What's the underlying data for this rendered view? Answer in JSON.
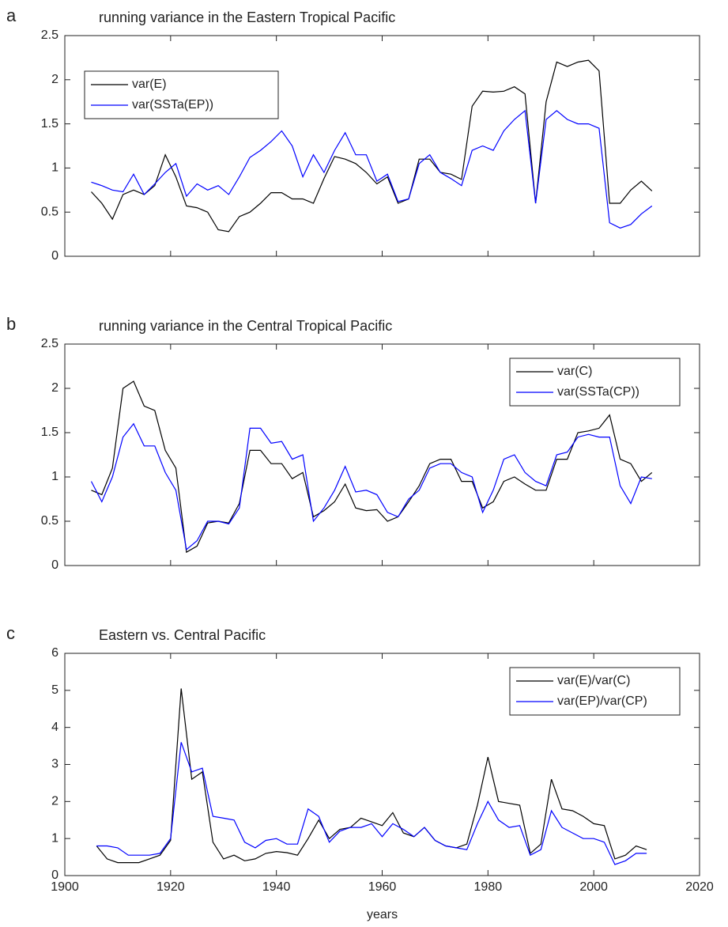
{
  "chart_data": [
    {
      "type": "line",
      "panel_label": "a",
      "title": "running variance in the Eastern Tropical Pacific",
      "x": [
        1905,
        1907,
        1909,
        1911,
        1913,
        1915,
        1917,
        1919,
        1921,
        1923,
        1925,
        1927,
        1929,
        1931,
        1933,
        1935,
        1937,
        1939,
        1941,
        1943,
        1945,
        1947,
        1949,
        1951,
        1953,
        1955,
        1957,
        1959,
        1961,
        1963,
        1965,
        1967,
        1969,
        1971,
        1973,
        1975,
        1977,
        1979,
        1981,
        1983,
        1985,
        1987,
        1989,
        1991,
        1993,
        1995,
        1997,
        1999,
        2001,
        2003,
        2005,
        2007,
        2009,
        2011
      ],
      "series": [
        {
          "name": "var(E)",
          "color": "#000000",
          "values": [
            0.73,
            0.6,
            0.42,
            0.7,
            0.75,
            0.7,
            0.8,
            1.15,
            0.9,
            0.57,
            0.55,
            0.5,
            0.3,
            0.28,
            0.45,
            0.5,
            0.6,
            0.72,
            0.72,
            0.65,
            0.65,
            0.6,
            0.88,
            1.13,
            1.1,
            1.05,
            0.95,
            0.82,
            0.9,
            0.6,
            0.65,
            1.1,
            1.1,
            0.95,
            0.93,
            0.87,
            1.7,
            1.87,
            1.86,
            1.87,
            1.92,
            1.84,
            0.6,
            1.75,
            2.2,
            2.15,
            2.2,
            2.22,
            2.1,
            0.6,
            0.6,
            0.75,
            0.85,
            0.74
          ]
        },
        {
          "name": "var(SSTa(EP))",
          "color": "#0000ff",
          "values": [
            0.84,
            0.8,
            0.75,
            0.73,
            0.93,
            0.7,
            0.82,
            0.95,
            1.05,
            0.68,
            0.82,
            0.75,
            0.8,
            0.7,
            0.9,
            1.12,
            1.2,
            1.3,
            1.42,
            1.25,
            0.9,
            1.15,
            0.95,
            1.2,
            1.4,
            1.15,
            1.15,
            0.85,
            0.93,
            0.62,
            0.65,
            1.05,
            1.15,
            0.95,
            0.88,
            0.8,
            1.2,
            1.25,
            1.2,
            1.42,
            1.55,
            1.65,
            0.6,
            1.55,
            1.65,
            1.55,
            1.5,
            1.5,
            1.45,
            0.38,
            0.32,
            0.36,
            0.48,
            0.57
          ]
        }
      ],
      "xlim": [
        1900,
        2020
      ],
      "xticks": [
        1900,
        1920,
        1940,
        1960,
        1980,
        2000,
        2020
      ],
      "xtick_labels": false,
      "ylim": [
        0,
        2.5
      ],
      "yticks": [
        0,
        0.5,
        1,
        1.5,
        2,
        2.5
      ],
      "legend": "upper left"
    },
    {
      "type": "line",
      "panel_label": "b",
      "title": "running variance in the Central Tropical Pacific",
      "x": [
        1905,
        1907,
        1909,
        1911,
        1913,
        1915,
        1917,
        1919,
        1921,
        1923,
        1925,
        1927,
        1929,
        1931,
        1933,
        1935,
        1937,
        1939,
        1941,
        1943,
        1945,
        1947,
        1949,
        1951,
        1953,
        1955,
        1957,
        1959,
        1961,
        1963,
        1965,
        1967,
        1969,
        1971,
        1973,
        1975,
        1977,
        1979,
        1981,
        1983,
        1985,
        1987,
        1989,
        1991,
        1993,
        1995,
        1997,
        1999,
        2001,
        2003,
        2005,
        2007,
        2009,
        2011
      ],
      "series": [
        {
          "name": "var(C)",
          "color": "#000000",
          "values": [
            0.85,
            0.8,
            1.1,
            2.0,
            2.08,
            1.8,
            1.75,
            1.3,
            1.1,
            0.15,
            0.22,
            0.48,
            0.5,
            0.48,
            0.7,
            1.3,
            1.3,
            1.15,
            1.15,
            0.98,
            1.05,
            0.55,
            0.62,
            0.72,
            0.92,
            0.65,
            0.62,
            0.63,
            0.5,
            0.55,
            0.72,
            0.9,
            1.15,
            1.2,
            1.2,
            0.95,
            0.95,
            0.65,
            0.72,
            0.95,
            1.0,
            0.92,
            0.85,
            0.85,
            1.2,
            1.2,
            1.5,
            1.52,
            1.55,
            1.7,
            1.2,
            1.15,
            0.95,
            1.05
          ]
        },
        {
          "name": "var(SSTa(CP))",
          "color": "#0000ff",
          "values": [
            0.95,
            0.72,
            1.0,
            1.45,
            1.6,
            1.35,
            1.35,
            1.05,
            0.85,
            0.18,
            0.28,
            0.5,
            0.5,
            0.47,
            0.65,
            1.55,
            1.55,
            1.38,
            1.4,
            1.2,
            1.25,
            0.5,
            0.65,
            0.85,
            1.12,
            0.83,
            0.85,
            0.8,
            0.6,
            0.55,
            0.75,
            0.85,
            1.1,
            1.15,
            1.15,
            1.05,
            1.0,
            0.6,
            0.85,
            1.2,
            1.25,
            1.05,
            0.95,
            0.9,
            1.25,
            1.28,
            1.45,
            1.48,
            1.45,
            1.45,
            0.9,
            0.7,
            1.0,
            0.98
          ]
        }
      ],
      "xlim": [
        1900,
        2020
      ],
      "xticks": [
        1900,
        1920,
        1940,
        1960,
        1980,
        2000,
        2020
      ],
      "xtick_labels": false,
      "ylim": [
        0,
        2.5
      ],
      "yticks": [
        0,
        0.5,
        1,
        1.5,
        2,
        2.5
      ],
      "legend": "upper right"
    },
    {
      "type": "line",
      "panel_label": "c",
      "title": "Eastern vs. Central Pacific",
      "xlabel": "years",
      "x": [
        1906,
        1908,
        1910,
        1912,
        1914,
        1916,
        1918,
        1920,
        1922,
        1924,
        1926,
        1928,
        1930,
        1932,
        1934,
        1936,
        1938,
        1940,
        1942,
        1944,
        1946,
        1948,
        1950,
        1952,
        1954,
        1956,
        1958,
        1960,
        1962,
        1964,
        1966,
        1968,
        1970,
        1972,
        1974,
        1976,
        1978,
        1980,
        1982,
        1984,
        1986,
        1988,
        1990,
        1992,
        1994,
        1996,
        1998,
        2000,
        2002,
        2004,
        2006,
        2008,
        2010
      ],
      "series": [
        {
          "name": "var(E)/var(C)",
          "color": "#000000",
          "values": [
            0.8,
            0.45,
            0.35,
            0.35,
            0.35,
            0.45,
            0.55,
            0.95,
            5.05,
            2.6,
            2.8,
            0.9,
            0.45,
            0.55,
            0.4,
            0.45,
            0.6,
            0.65,
            0.62,
            0.55,
            1.0,
            1.5,
            1.0,
            1.25,
            1.3,
            1.55,
            1.45,
            1.35,
            1.7,
            1.15,
            1.05,
            1.3,
            0.95,
            0.8,
            0.75,
            0.85,
            1.9,
            3.2,
            2.0,
            1.95,
            1.9,
            0.6,
            0.85,
            2.6,
            1.8,
            1.75,
            1.6,
            1.4,
            1.35,
            0.45,
            0.55,
            0.8,
            0.7
          ]
        },
        {
          "name": "var(EP)/var(CP)",
          "color": "#0000ff",
          "values": [
            0.8,
            0.8,
            0.75,
            0.55,
            0.55,
            0.55,
            0.6,
            1.0,
            3.6,
            2.8,
            2.9,
            1.6,
            1.55,
            1.5,
            0.9,
            0.75,
            0.95,
            1.0,
            0.85,
            0.85,
            1.8,
            1.6,
            0.9,
            1.2,
            1.3,
            1.3,
            1.4,
            1.05,
            1.4,
            1.25,
            1.05,
            1.3,
            0.95,
            0.8,
            0.75,
            0.7,
            1.4,
            2.0,
            1.5,
            1.3,
            1.35,
            0.55,
            0.7,
            1.75,
            1.3,
            1.15,
            1.0,
            1.0,
            0.9,
            0.3,
            0.4,
            0.6,
            0.6
          ]
        }
      ],
      "xlim": [
        1900,
        2020
      ],
      "xticks": [
        1900,
        1920,
        1940,
        1960,
        1980,
        2000,
        2020
      ],
      "xtick_labels": true,
      "ylim": [
        0,
        6
      ],
      "yticks": [
        0,
        1,
        2,
        3,
        4,
        5,
        6
      ],
      "legend": "upper right"
    }
  ]
}
